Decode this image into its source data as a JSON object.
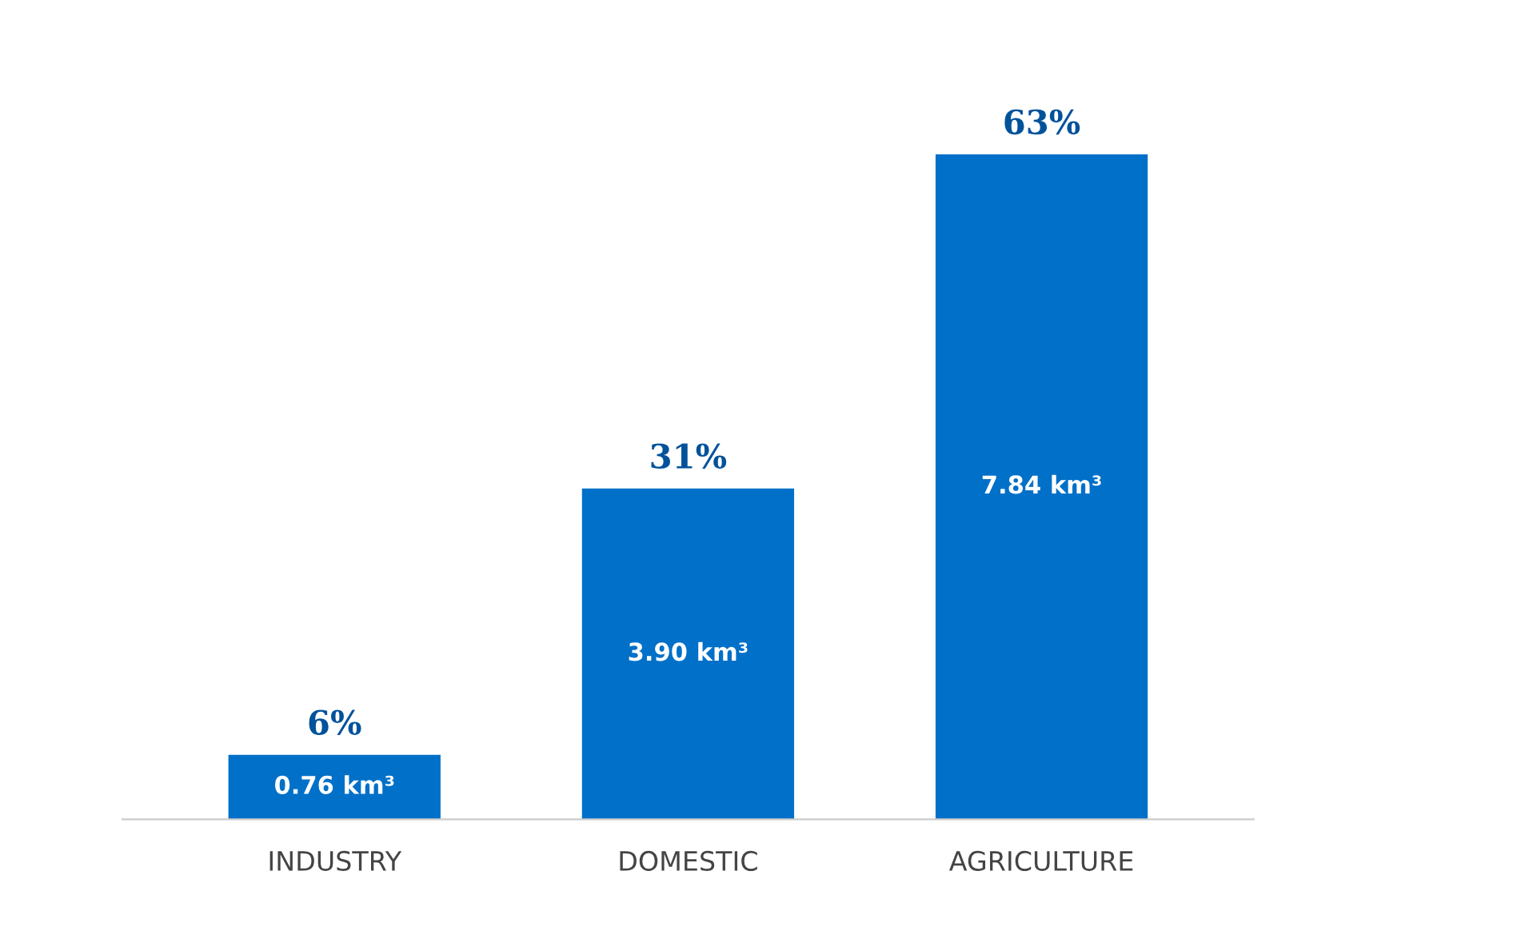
{
  "chart_data": {
    "type": "bar",
    "categories": [
      "INDUSTRY",
      "DOMESTIC",
      "AGRICULTURE"
    ],
    "values": [
      0.76,
      3.9,
      7.84
    ],
    "value_labels": [
      "0.76 km³",
      "3.90 km³",
      "7.84 km³"
    ],
    "color": "#0070c8",
    "annotations": [
      {
        "text": "6%",
        "x": "INDUSTRY",
        "y": 0.76
      },
      {
        "text": "31%",
        "x": "DOMESTIC",
        "y": 3.9
      },
      {
        "text": "63%",
        "x": "AGRICULTURE",
        "y": 7.84
      }
    ],
    "grid": false,
    "legend": false,
    "tick_labels": "x"
  }
}
